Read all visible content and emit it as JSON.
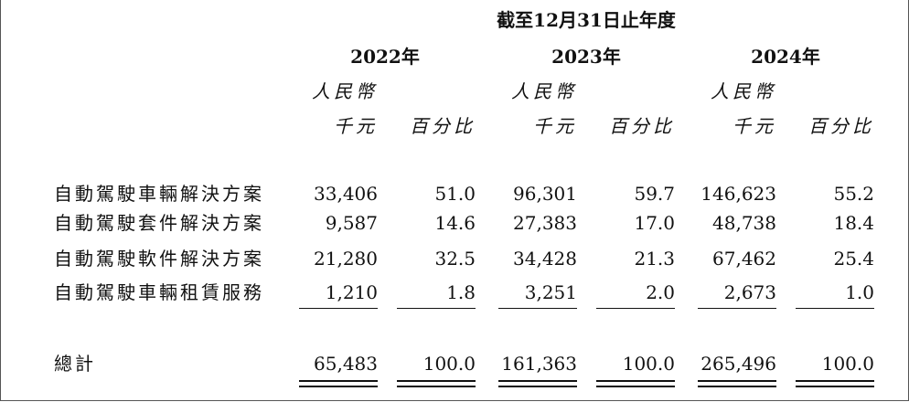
{
  "header": "截至12月31日止年度",
  "years": [
    {
      "year": "2022年",
      "currency": "人民幣",
      "unit": "千元",
      "percent": "百分比"
    },
    {
      "year": "2023年",
      "currency": "人民幣",
      "unit": "千元",
      "percent": "百分比"
    },
    {
      "year": "2024年",
      "currency": "人民幣",
      "unit": "千元",
      "percent": "百分比"
    }
  ],
  "rows": [
    {
      "label": "自動駕駛車輛解決方案",
      "cells": [
        "33,406",
        "51.0",
        "96,301",
        "59.7",
        "146,623",
        "55.2"
      ]
    },
    {
      "label": "自動駕駛套件解決方案",
      "cells": [
        "9,587",
        "14.6",
        "27,383",
        "17.0",
        "48,738",
        "18.4"
      ]
    },
    {
      "label": "自動駕駛軟件解決方案",
      "cells": [
        "21,280",
        "32.5",
        "34,428",
        "21.3",
        "67,462",
        "25.4"
      ]
    },
    {
      "label": "自動駕駛車輛租賃服務",
      "cells": [
        "1,210",
        "1.8",
        "3,251",
        "2.0",
        "2,673",
        "1.0"
      ]
    }
  ],
  "total": {
    "label": "總計",
    "cells": [
      "65,483",
      "100.0",
      "161,363",
      "100.0",
      "265,496",
      "100.0"
    ]
  }
}
